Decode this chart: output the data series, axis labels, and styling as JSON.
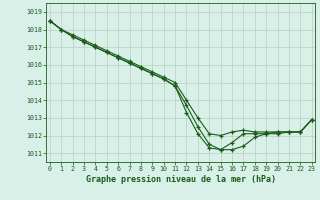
{
  "title": "Graphe pression niveau de la mer (hPa)",
  "bg_color": "#d8f0e8",
  "grid_color": "#b8cfc0",
  "line_color": "#1a5c1a",
  "xlim": [
    -0.3,
    23.3
  ],
  "ylim": [
    1010.5,
    1019.5
  ],
  "yticks": [
    1011,
    1012,
    1013,
    1014,
    1015,
    1016,
    1017,
    1018,
    1019
  ],
  "xticks": [
    0,
    1,
    2,
    3,
    4,
    5,
    6,
    7,
    8,
    9,
    10,
    11,
    12,
    13,
    14,
    15,
    16,
    17,
    18,
    19,
    20,
    21,
    22,
    23
  ],
  "series": [
    [
      1018.5,
      1018.0,
      1017.6,
      1017.3,
      1017.0,
      1016.7,
      1016.4,
      1016.1,
      1015.8,
      1015.5,
      1015.2,
      1014.8,
      1013.7,
      1012.5,
      1011.5,
      1011.2,
      1011.2,
      1011.4,
      1011.9,
      1012.1,
      1012.1,
      1012.2,
      1012.2,
      1012.9
    ],
    [
      1018.5,
      1018.0,
      1017.6,
      1017.3,
      1017.0,
      1016.7,
      1016.4,
      1016.1,
      1015.8,
      1015.5,
      1015.2,
      1014.8,
      1013.3,
      1012.1,
      1011.3,
      1011.2,
      1011.6,
      1012.1,
      1012.1,
      1012.1,
      1012.2,
      1012.2,
      1012.2,
      1012.9
    ],
    [
      1018.5,
      1018.0,
      1017.7,
      1017.4,
      1017.1,
      1016.8,
      1016.5,
      1016.2,
      1015.9,
      1015.6,
      1015.3,
      1015.0,
      1014.0,
      1013.0,
      1012.1,
      1012.0,
      1012.2,
      1012.3,
      1012.2,
      1012.2,
      1012.2,
      1012.2,
      1012.2,
      1012.9
    ]
  ],
  "ylabel_fontsize": 5.0,
  "xlabel_fontsize": 6.0,
  "tick_labelsize": 4.8,
  "linewidth": 0.8,
  "markersize": 3.0
}
